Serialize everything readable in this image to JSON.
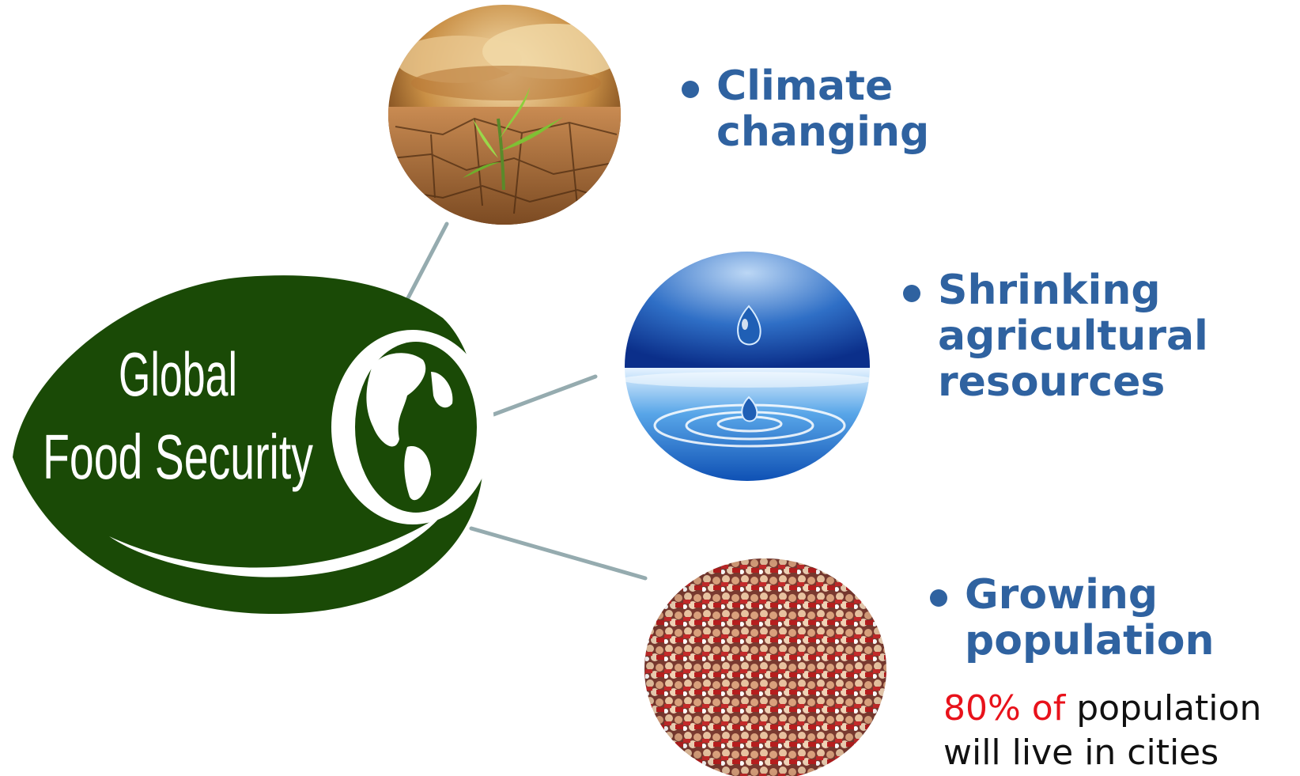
{
  "logo": {
    "title_line1": "Global",
    "title_line2": "Food Security",
    "icon": "globe-icon",
    "colors": {
      "leaf": "#1a4a06",
      "text": "#ffffff"
    }
  },
  "nodes": [
    {
      "id": "climate",
      "icon": "dry-earth-seedling-photo",
      "lines": "Climate\nchanging"
    },
    {
      "id": "resources",
      "icon": "water-drop-photo",
      "lines": "Shrinking\nagricultural\nresources"
    },
    {
      "id": "population",
      "icon": "crowd-photo",
      "lines": "Growing\npopulation"
    }
  ],
  "note": {
    "highlight": "80% of",
    "rest_line1": " population",
    "line2": "will live in cities"
  },
  "colors": {
    "heading": "#2f62a0",
    "highlight": "#e8121b",
    "connector": "#95abaf"
  }
}
